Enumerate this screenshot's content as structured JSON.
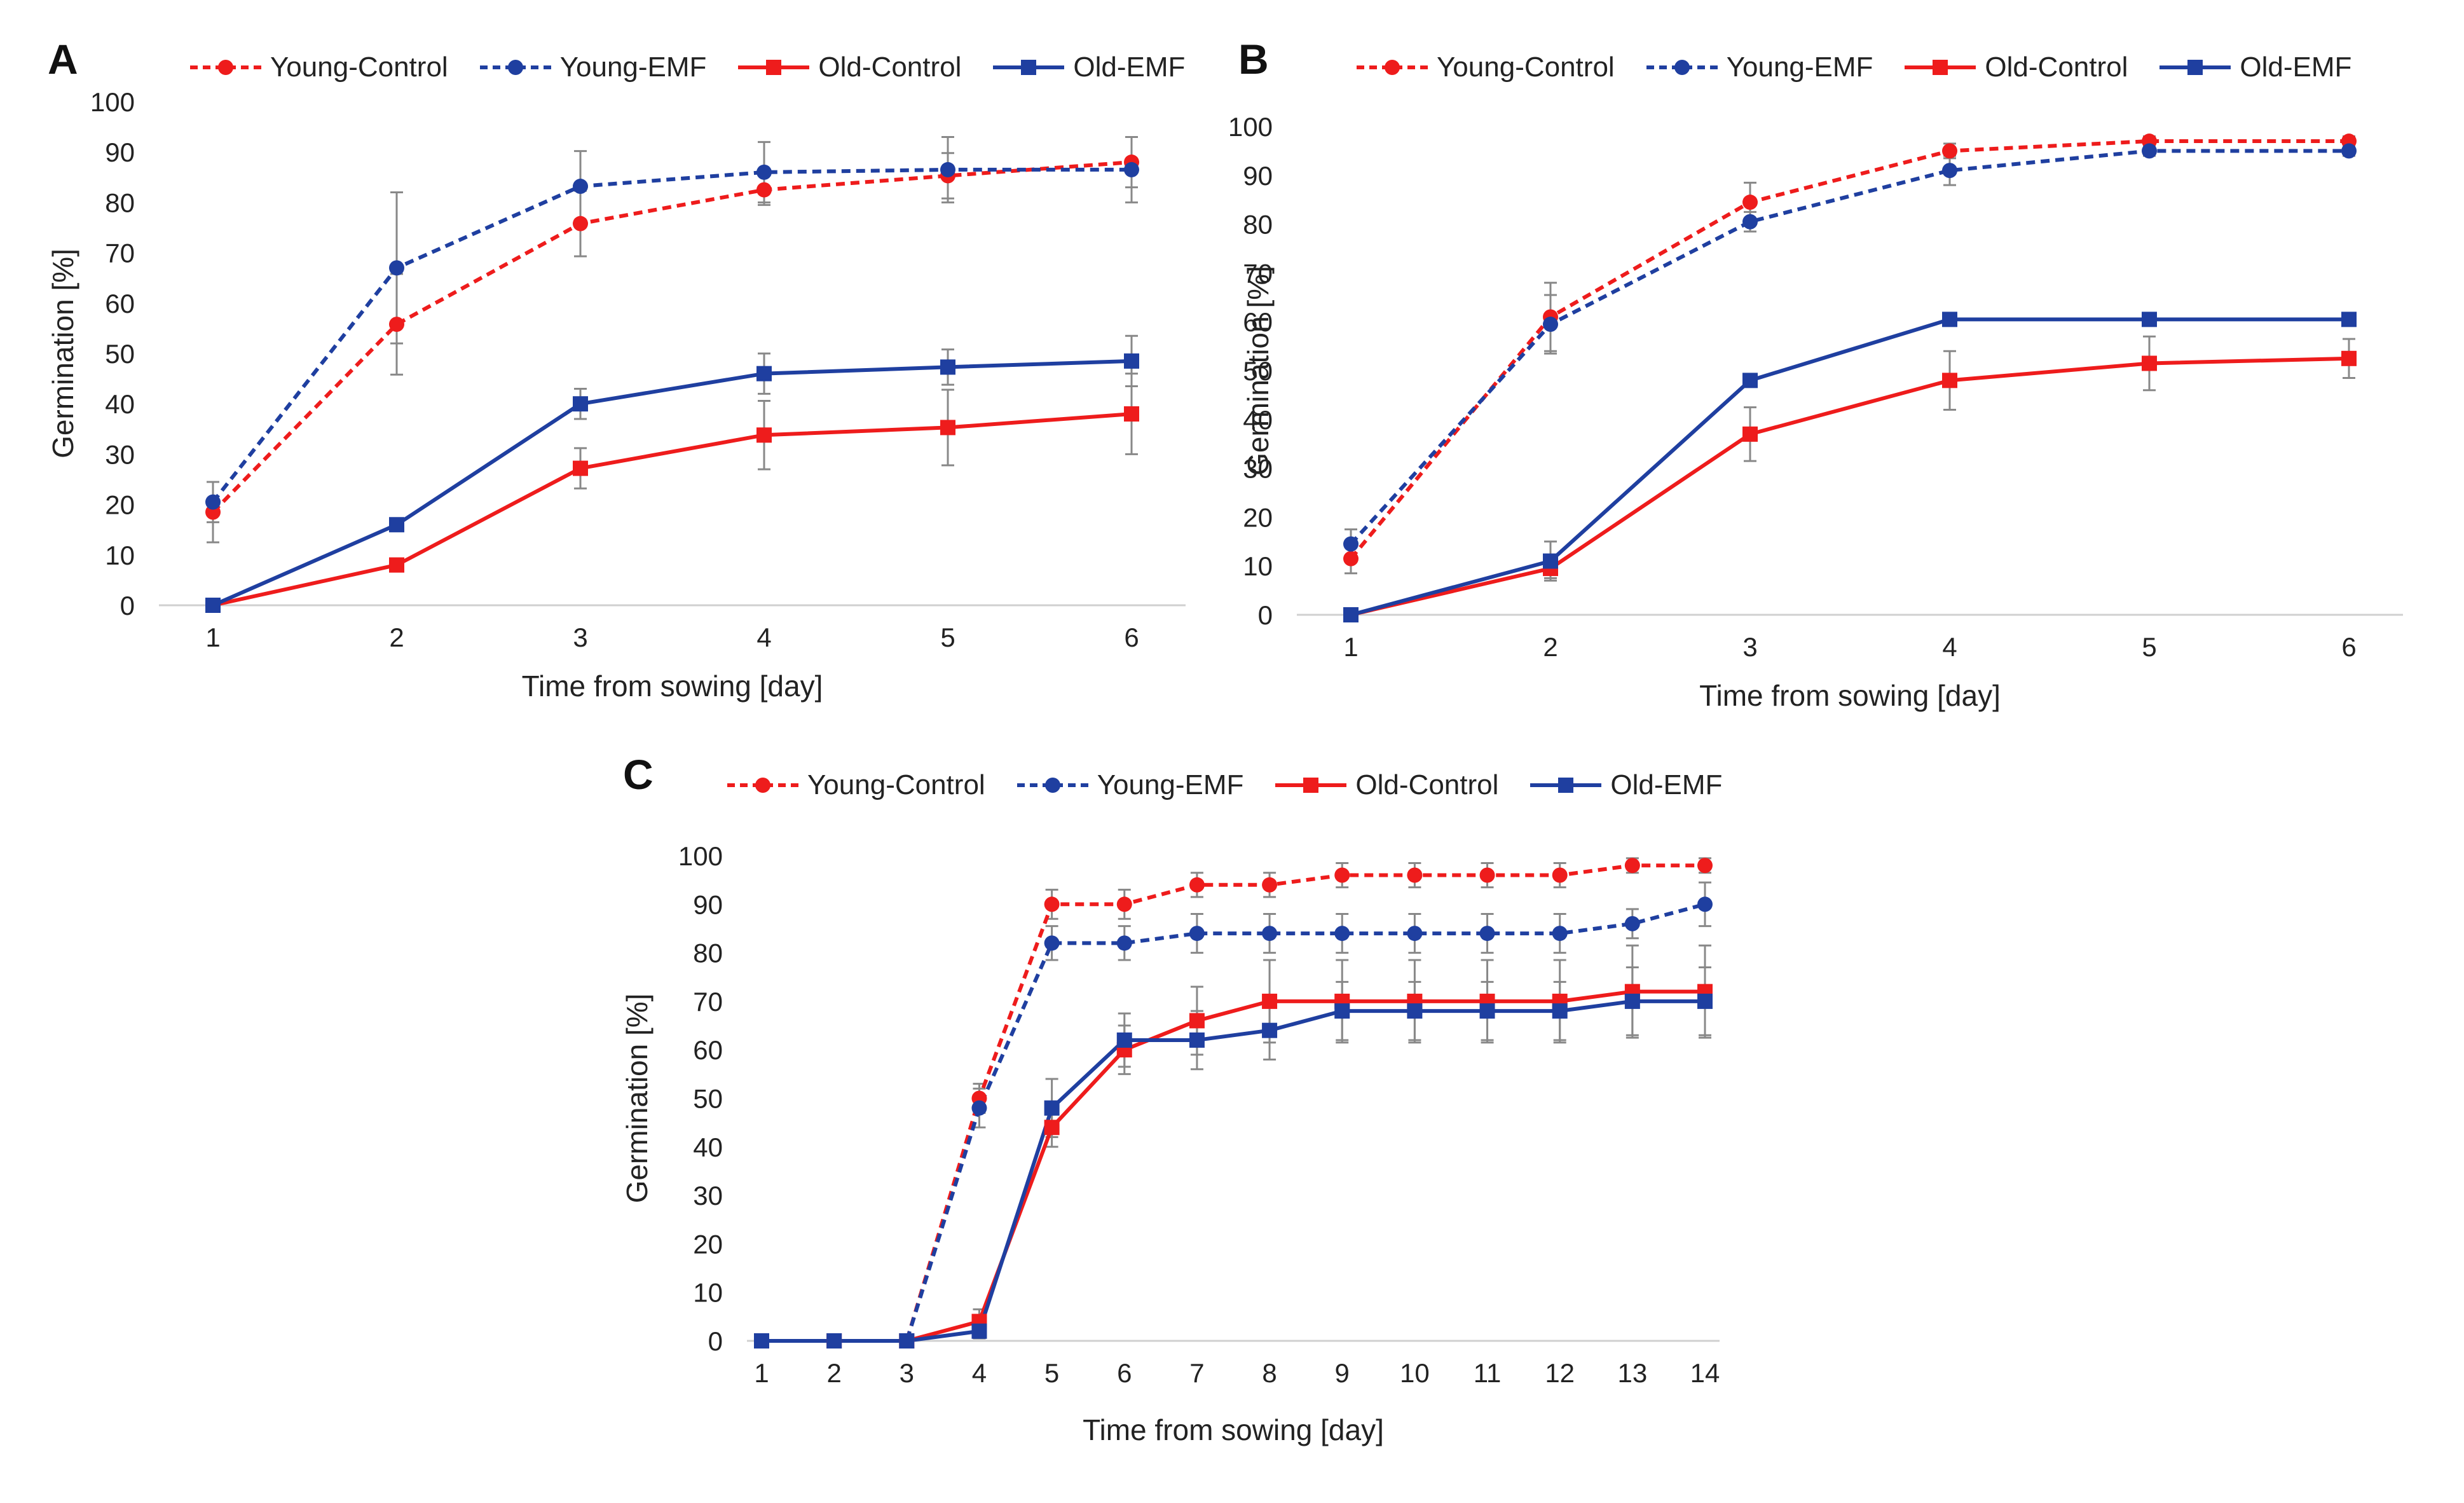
{
  "chart_data": [
    {
      "panel_label": "A",
      "type": "line",
      "xlabel": "Time from sowing [day]",
      "ylabel": "Germination [%]",
      "categories": [
        "1",
        "2",
        "3",
        "4",
        "5",
        "6"
      ],
      "y_ticks": [
        "0",
        "10",
        "20",
        "30",
        "40",
        "50",
        "60",
        "70",
        "80",
        "90",
        "100"
      ],
      "ylim": [
        0,
        100
      ],
      "legend_position": "top",
      "series": [
        {
          "name": "Young-Control",
          "color": "#ee1c1c",
          "dashed": true,
          "marker": "circle",
          "values": [
            18.5,
            55.8,
            75.8,
            82.5,
            85.3,
            88
          ],
          "errors": [
            6,
            10,
            6.5,
            3,
            4.5,
            5
          ]
        },
        {
          "name": "Young-EMF",
          "color": "#1f3fa0",
          "dashed": true,
          "marker": "circle",
          "values": [
            20.5,
            67,
            83.2,
            86,
            86.5,
            86.5
          ],
          "errors": [
            4,
            15,
            7,
            6,
            6.5,
            6.5
          ]
        },
        {
          "name": "Old-Control",
          "color": "#ee1c1c",
          "dashed": false,
          "marker": "square",
          "values": [
            0,
            8,
            27.2,
            33.8,
            35.3,
            38
          ],
          "errors": [
            0,
            0,
            4,
            6.8,
            7.5,
            8
          ]
        },
        {
          "name": "Old-EMF",
          "color": "#1f3fa0",
          "dashed": false,
          "marker": "square",
          "values": [
            0,
            16,
            40,
            46,
            47.3,
            48.5
          ],
          "errors": [
            0,
            0,
            3,
            4,
            3.5,
            5
          ]
        }
      ]
    },
    {
      "panel_label": "B",
      "type": "line",
      "xlabel": "Time from sowing [day]",
      "ylabel": "Germination [%]",
      "categories": [
        "1",
        "2",
        "3",
        "4",
        "5",
        "6"
      ],
      "y_ticks": [
        "0",
        "10",
        "20",
        "30",
        "40",
        "50",
        "60",
        "70",
        "80",
        "90",
        "100"
      ],
      "ylim": [
        0,
        100
      ],
      "legend_position": "top",
      "series": [
        {
          "name": "Young-Control",
          "color": "#ee1c1c",
          "dashed": true,
          "marker": "circle",
          "values": [
            11.5,
            61,
            84.5,
            95,
            97,
            97
          ],
          "errors": [
            3,
            7,
            4,
            1.5,
            1,
            1
          ]
        },
        {
          "name": "Young-EMF",
          "color": "#1f3fa0",
          "dashed": true,
          "marker": "circle",
          "values": [
            14.5,
            59.5,
            80.5,
            91,
            95,
            95
          ],
          "errors": [
            3,
            6,
            2,
            3,
            1,
            1
          ]
        },
        {
          "name": "Old-Control",
          "color": "#ee1c1c",
          "dashed": false,
          "marker": "square",
          "values": [
            0,
            9.5,
            37,
            48,
            51.5,
            52.5
          ],
          "errors": [
            0,
            2,
            5.5,
            6,
            5.5,
            4
          ]
        },
        {
          "name": "Old-EMF",
          "color": "#1f3fa0",
          "dashed": false,
          "marker": "square",
          "values": [
            0,
            11,
            48,
            60.5,
            60.5,
            60.5
          ],
          "errors": [
            0,
            4,
            0,
            0,
            0,
            0
          ]
        }
      ]
    },
    {
      "panel_label": "C",
      "type": "line",
      "xlabel": "Time from sowing [day]",
      "ylabel": "Germination [%]",
      "categories": [
        "1",
        "2",
        "3",
        "4",
        "5",
        "6",
        "7",
        "8",
        "9",
        "10",
        "11",
        "12",
        "13",
        "14"
      ],
      "y_ticks": [
        "0",
        "10",
        "20",
        "30",
        "40",
        "50",
        "60",
        "70",
        "80",
        "90",
        "100"
      ],
      "ylim": [
        0,
        100
      ],
      "legend_position": "top",
      "series": [
        {
          "name": "Young-Control",
          "color": "#ee1c1c",
          "dashed": true,
          "marker": "circle",
          "values": [
            0,
            0,
            0,
            50,
            90,
            90,
            94,
            94,
            96,
            96,
            96,
            96,
            98,
            98
          ],
          "errors": [
            0,
            0,
            0,
            3,
            3,
            3,
            2.5,
            2.5,
            2.5,
            2.5,
            2.5,
            2.5,
            1.5,
            1.5
          ]
        },
        {
          "name": "Young-EMF",
          "color": "#1f3fa0",
          "dashed": true,
          "marker": "circle",
          "values": [
            0,
            0,
            0,
            48,
            82,
            82,
            84,
            84,
            84,
            84,
            84,
            84,
            86,
            90
          ],
          "errors": [
            0,
            0,
            0,
            4,
            3.5,
            3.5,
            4,
            4,
            4,
            4,
            4,
            4,
            3,
            4.5
          ]
        },
        {
          "name": "Old-Control",
          "color": "#ee1c1c",
          "dashed": false,
          "marker": "square",
          "values": [
            0,
            0,
            0,
            4,
            44,
            60,
            66,
            70,
            70,
            70,
            70,
            70,
            72,
            72
          ],
          "errors": [
            0,
            0,
            0,
            2.5,
            4,
            5,
            7,
            8.5,
            8.5,
            8.5,
            8.5,
            8.5,
            9.5,
            9.5
          ]
        },
        {
          "name": "Old-EMF",
          "color": "#1f3fa0",
          "dashed": false,
          "marker": "square",
          "values": [
            0,
            0,
            0,
            2,
            48,
            62,
            62,
            64,
            68,
            68,
            68,
            68,
            70,
            70
          ],
          "errors": [
            0,
            0,
            0,
            1.5,
            6,
            5.5,
            6,
            6,
            6,
            6,
            6,
            6,
            7,
            7
          ]
        }
      ]
    }
  ]
}
